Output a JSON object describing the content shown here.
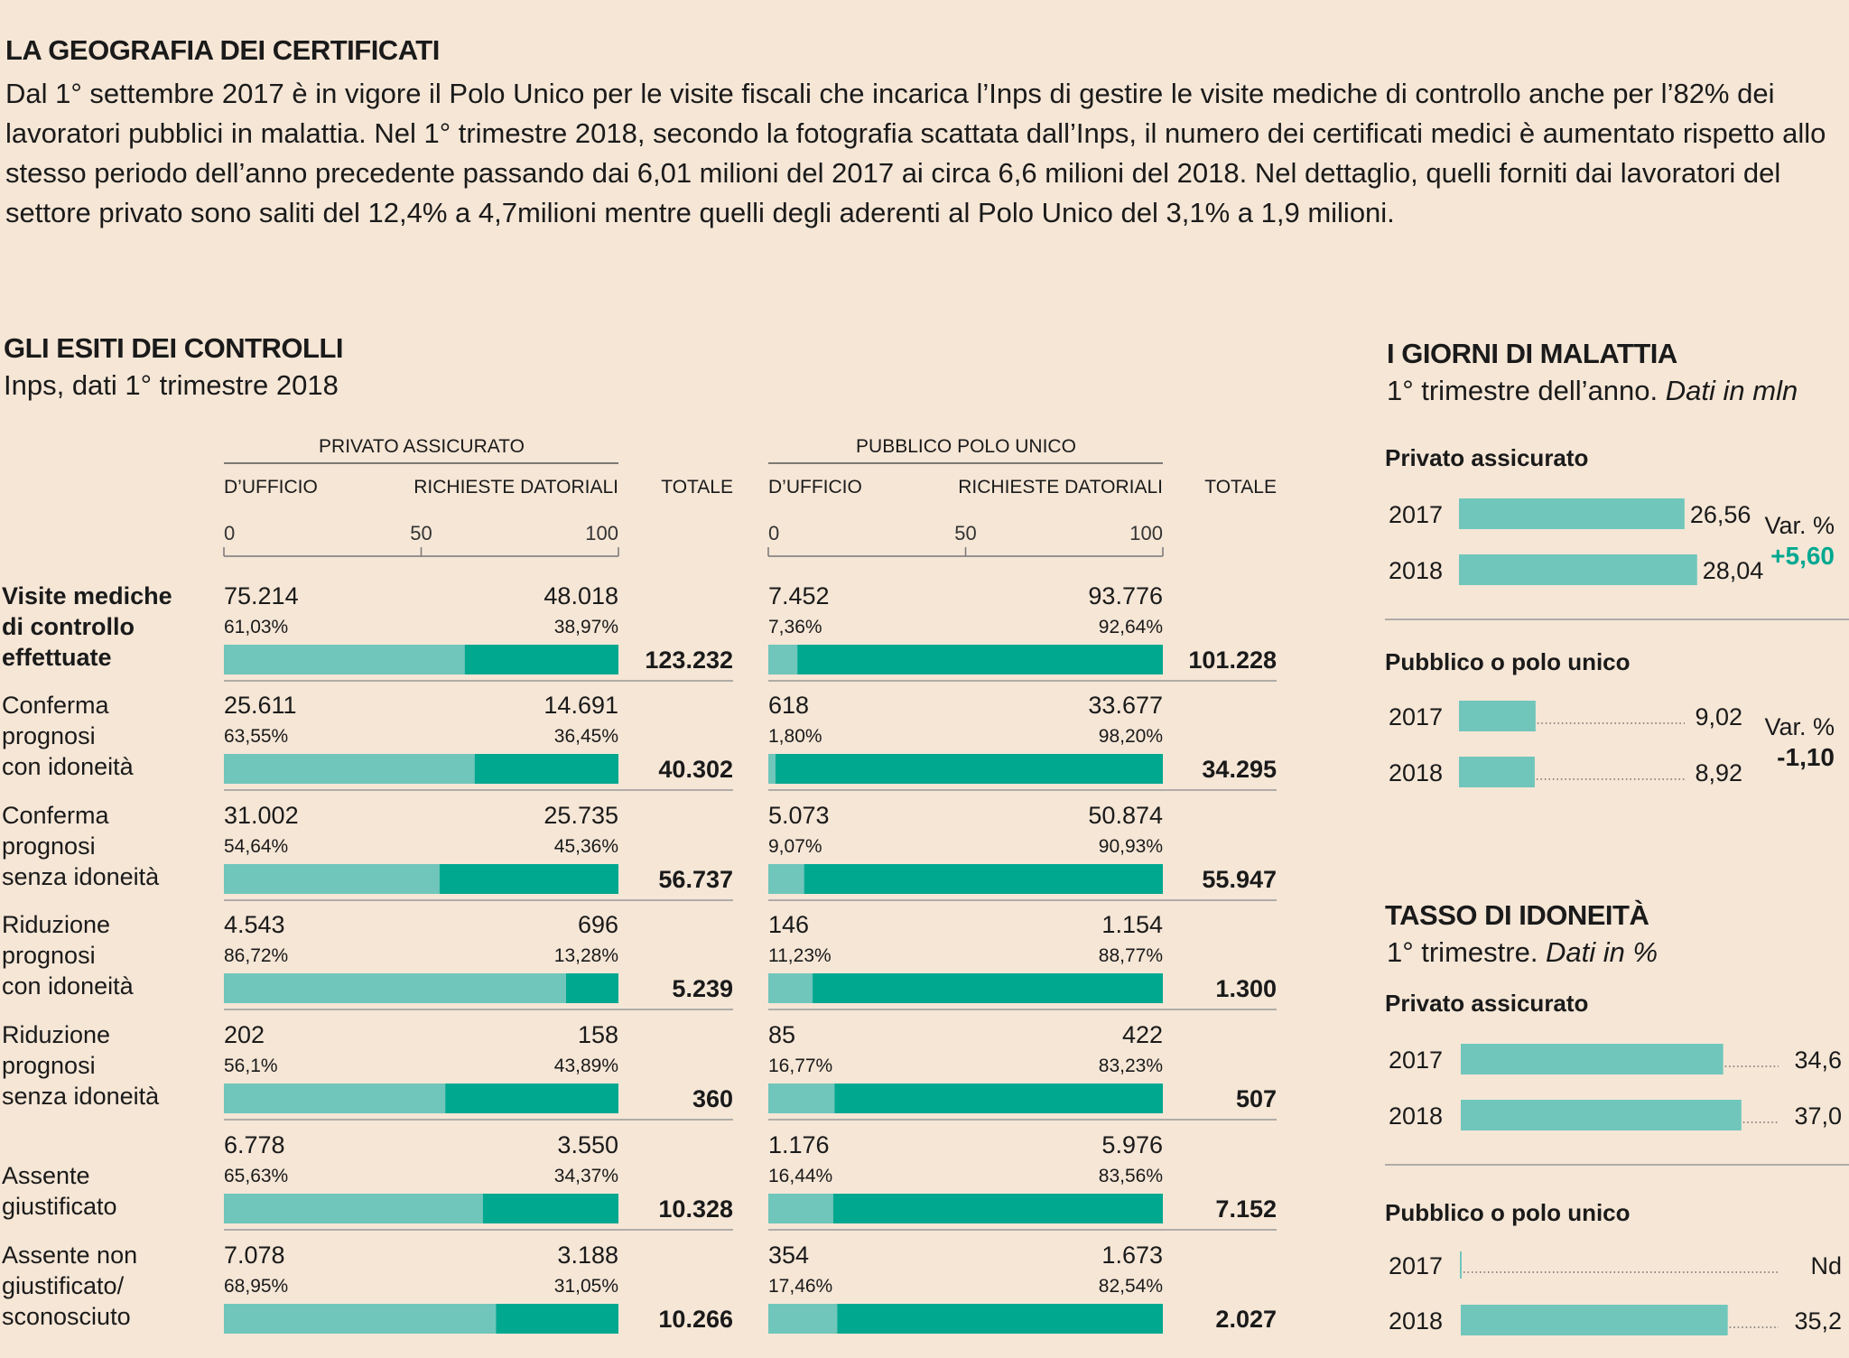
{
  "header": {
    "title": "LA GEOGRAFIA DEI CERTIFICATI",
    "intro": "Dal 1° settembre 2017 è in vigore il Polo Unico per le visite fiscali che incarica l’Inps di gestire le visite mediche di controllo anche per l’82% dei lavoratori pubblici in malattia. Nel 1° trimestre 2018, secondo la fotografia scattata dall’Inps, il numero dei certificati medici è aumentato rispetto allo stesso periodo dell’anno precedente passando dai  6,01 milioni del 2017 ai circa 6,6 milioni del 2018. Nel dettaglio, quelli forniti dai lavoratori del settore privato sono saliti del 12,4% a 4,7milioni mentre quelli degli aderenti al Polo Unico del 3,1% a 1,9 milioni."
  },
  "controls": {
    "title": "GLI ESITI DEI CONTROLLI",
    "subtitle": "Inps, dati 1° trimestre 2018"
  },
  "sickdays": {
    "title": "I GIORNI DI MALATTIA",
    "subtitle_plain": "1° trimestre dell’anno. ",
    "subtitle_italic": "Dati in mln"
  },
  "fitness": {
    "title": "TASSO DI IDONEITÀ",
    "subtitle_plain": "1° trimestre. ",
    "subtitle_italic": "Dati in %"
  },
  "colors": {
    "light": "#70c6bb",
    "dark": "#00a890",
    "bg": "#f5e6d6",
    "accent": "#00a890"
  },
  "chart_data": [
    {
      "type": "bar",
      "subtype": "stacked-100",
      "groups": [
        {
          "name": "PRIVATO ASSICURATO",
          "sub1": "D’UFFICIO",
          "sub2": "RICHIESTE DATORIALI",
          "total_label": "TOTALE"
        },
        {
          "name": "PUBBLICO POLO UNICO",
          "sub1": "D’UFFICIO",
          "sub2": "RICHIESTE DATORIALI",
          "total_label": "TOTALE"
        }
      ],
      "axis_ticks": [
        "0",
        "50",
        "100"
      ],
      "xlim": [
        0,
        100
      ],
      "rows": [
        {
          "label": [
            "Visite mediche",
            "di controllo",
            "effettuate"
          ],
          "bold": true,
          "privato": {
            "ufficio": "75.214",
            "ufficio_pct": "61,03%",
            "datoriali": "48.018",
            "datoriali_pct": "38,97%",
            "pct": 61.03,
            "totale": "123.232"
          },
          "pubblico": {
            "ufficio": "7.452",
            "ufficio_pct": "7,36%",
            "datoriali": "93.776",
            "datoriali_pct": "92,64%",
            "pct": 7.36,
            "totale": "101.228"
          }
        },
        {
          "label": [
            "Conferma",
            "prognosi",
            "con idoneità"
          ],
          "bold": false,
          "privato": {
            "ufficio": "25.611",
            "ufficio_pct": "63,55%",
            "datoriali": "14.691",
            "datoriali_pct": "36,45%",
            "pct": 63.55,
            "totale": "40.302"
          },
          "pubblico": {
            "ufficio": "618",
            "ufficio_pct": "1,80%",
            "datoriali": "33.677",
            "datoriali_pct": "98,20%",
            "pct": 1.8,
            "totale": "34.295"
          }
        },
        {
          "label": [
            "Conferma",
            "prognosi",
            "senza idoneità"
          ],
          "bold": false,
          "privato": {
            "ufficio": "31.002",
            "ufficio_pct": "54,64%",
            "datoriali": "25.735",
            "datoriali_pct": "45,36%",
            "pct": 54.64,
            "totale": "56.737"
          },
          "pubblico": {
            "ufficio": "5.073",
            "ufficio_pct": "9,07%",
            "datoriali": "50.874",
            "datoriali_pct": "90,93%",
            "pct": 9.07,
            "totale": "55.947"
          }
        },
        {
          "label": [
            "Riduzione",
            "prognosi",
            "con idoneità"
          ],
          "bold": false,
          "privato": {
            "ufficio": "4.543",
            "ufficio_pct": "86,72%",
            "datoriali": "696",
            "datoriali_pct": "13,28%",
            "pct": 86.72,
            "totale": "5.239"
          },
          "pubblico": {
            "ufficio": "146",
            "ufficio_pct": "11,23%",
            "datoriali": "1.154",
            "datoriali_pct": "88,77%",
            "pct": 11.23,
            "totale": "1.300"
          }
        },
        {
          "label": [
            "Riduzione",
            "prognosi",
            "senza idoneità"
          ],
          "bold": false,
          "privato": {
            "ufficio": "202",
            "ufficio_pct": "56,1%",
            "datoriali": "158",
            "datoriali_pct": "43,89%",
            "pct": 56.1,
            "totale": "360"
          },
          "pubblico": {
            "ufficio": "85",
            "ufficio_pct": "16,77%",
            "datoriali": "422",
            "datoriali_pct": "83,23%",
            "pct": 16.77,
            "totale": "507"
          }
        },
        {
          "label": [
            "Assente",
            "giustificato"
          ],
          "bold": false,
          "privato": {
            "ufficio": "6.778",
            "ufficio_pct": "65,63%",
            "datoriali": "3.550",
            "datoriali_pct": "34,37%",
            "pct": 65.63,
            "totale": "10.328"
          },
          "pubblico": {
            "ufficio": "1.176",
            "ufficio_pct": "16,44%",
            "datoriali": "5.976",
            "datoriali_pct": "83,56%",
            "pct": 16.44,
            "totale": "7.152"
          }
        },
        {
          "label": [
            "Assente non",
            "giustificato/",
            "sconosciuto"
          ],
          "bold": false,
          "privato": {
            "ufficio": "7.078",
            "ufficio_pct": "68,95%",
            "datoriali": "3.188",
            "datoriali_pct": "31,05%",
            "pct": 68.95,
            "totale": "10.266"
          },
          "pubblico": {
            "ufficio": "354",
            "ufficio_pct": "17,46%",
            "datoriali": "1.673",
            "datoriali_pct": "82,54%",
            "pct": 17.46,
            "totale": "2.027"
          }
        }
      ]
    },
    {
      "type": "bar",
      "subtype": "horizontal",
      "name": "sickdays",
      "xlim": [
        0,
        32
      ],
      "blocks": [
        {
          "title": "Privato assicurato",
          "var_label": "Var. %",
          "var_value": "+5,60",
          "var_accent": true,
          "rows": [
            {
              "year": "2017",
              "value": 26.56,
              "label": "26,56"
            },
            {
              "year": "2018",
              "value": 28.04,
              "label": "28,04"
            }
          ]
        },
        {
          "title": "Pubblico o polo unico",
          "var_label": "Var. %",
          "var_value": "-1,10",
          "var_accent": false,
          "rows": [
            {
              "year": "2017",
              "value": 9.02,
              "label": "9,02"
            },
            {
              "year": "2018",
              "value": 8.92,
              "label": "8,92"
            }
          ]
        }
      ]
    },
    {
      "type": "bar",
      "subtype": "horizontal",
      "name": "fitness",
      "xlim": [
        0,
        50
      ],
      "blocks": [
        {
          "title": "Privato assicurato",
          "rows": [
            {
              "year": "2017",
              "value": 34.6,
              "label": "34,6"
            },
            {
              "year": "2018",
              "value": 37.0,
              "label": "37,0"
            }
          ]
        },
        {
          "title": "Pubblico o polo unico",
          "rows": [
            {
              "year": "2017",
              "value": null,
              "label": "Nd"
            },
            {
              "year": "2018",
              "value": 35.2,
              "label": "35,2"
            }
          ]
        }
      ]
    }
  ]
}
